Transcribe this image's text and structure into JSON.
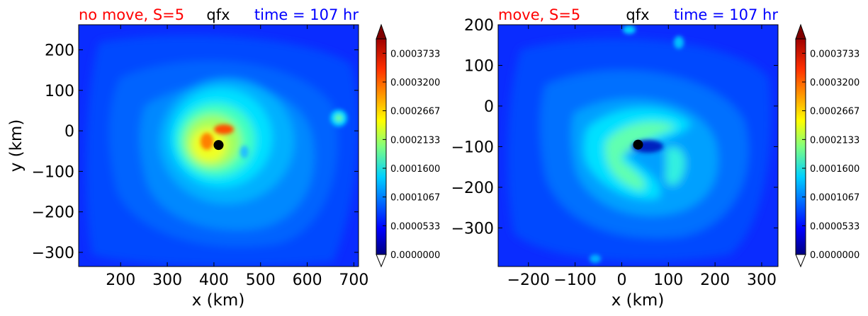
{
  "colors": {
    "title_left": "#ff0000",
    "title_center": "#000000",
    "title_right": "#0000ff",
    "colormap": [
      "#00007f",
      "#0000ff",
      "#007fff",
      "#00ffff",
      "#7fff7f",
      "#ffff00",
      "#ff7f00",
      "#ff0000",
      "#7f0000"
    ]
  },
  "chart_data": [
    {
      "type": "heatmap",
      "title_left": "no move, S=5",
      "title_center": "qfx",
      "title_right": "time = 107 hr",
      "xlabel": "x (km)",
      "ylabel": "y (km)",
      "xlim": [
        110,
        710
      ],
      "ylim": [
        -335,
        262
      ],
      "xticks": [
        "200",
        "300",
        "400",
        "500",
        "600",
        "700"
      ],
      "xtick_values": [
        200,
        300,
        400,
        500,
        600,
        700
      ],
      "yticks": [
        "200",
        "100",
        "0",
        "−100",
        "−200",
        "−300"
      ],
      "ytick_values": [
        200,
        100,
        0,
        -100,
        -200,
        -300
      ],
      "center_marker": {
        "x": 410,
        "y": -35
      },
      "colorbar": {
        "min": 0.0,
        "max": 0.0004,
        "extend": "both",
        "ticks": [
          "0.0003733",
          "0.0003200",
          "0.0002667",
          "0.0002133",
          "0.0001600",
          "0.0001067",
          "0.0000533",
          "0.0000000"
        ],
        "tick_values": [
          0.0003733,
          0.00032,
          0.0002667,
          0.0002133,
          0.00016,
          0.0001067,
          5.33e-05,
          0.0
        ]
      }
    },
    {
      "type": "heatmap",
      "title_left": "move, S=5",
      "title_center": "qfx",
      "title_right": "time = 107 hr",
      "xlabel": "x (km)",
      "ylabel": "",
      "xlim": [
        -265,
        335
      ],
      "ylim": [
        -395,
        200
      ],
      "xticks": [
        "−200",
        "−100",
        "0",
        "100",
        "200",
        "300"
      ],
      "xtick_values": [
        -200,
        -100,
        0,
        100,
        200,
        300
      ],
      "yticks": [
        "200",
        "100",
        "0",
        "−100",
        "−200",
        "−300"
      ],
      "ytick_values": [
        200,
        100,
        0,
        -100,
        -200,
        -300
      ],
      "center_marker": {
        "x": 35,
        "y": -95
      },
      "colorbar": {
        "min": 0.0,
        "max": 0.0004,
        "extend": "both",
        "ticks": [
          "0.0003733",
          "0.0003200",
          "0.0002667",
          "0.0002133",
          "0.0001600",
          "0.0001067",
          "0.0000533",
          "0.0000000"
        ],
        "tick_values": [
          0.0003733,
          0.00032,
          0.0002667,
          0.0002133,
          0.00016,
          0.0001067,
          5.33e-05,
          0.0
        ]
      }
    }
  ]
}
